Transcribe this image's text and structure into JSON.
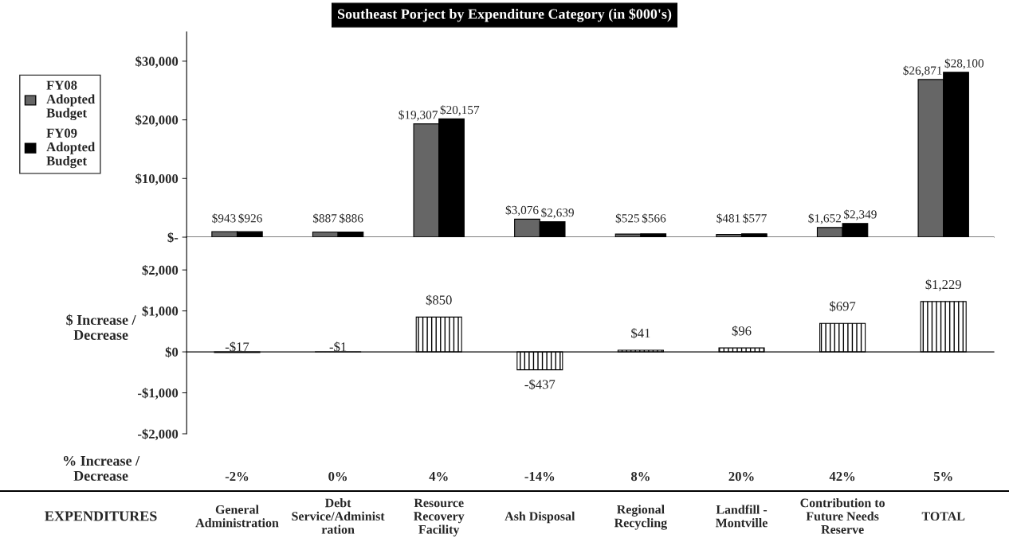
{
  "chart_data": [
    {
      "type": "bar",
      "title": "Southeast Porject by Expenditure Category (in $000's)",
      "categories": [
        null,
        null,
        null,
        null,
        null,
        null,
        null,
        null
      ],
      "series": [
        {
          "name": "FY08 Adopted Budget",
          "color": "#666666",
          "values": [
            943,
            887,
            19307,
            3076,
            525,
            481,
            1652,
            26871
          ],
          "value_labels": [
            "$943",
            "$887",
            "$19,307",
            "$3,076",
            "$525",
            "$481",
            "$1,652",
            "$26,871"
          ]
        },
        {
          "name": "FY09 Adopted Budget",
          "color": "#000000",
          "values": [
            926,
            886,
            20157,
            2639,
            566,
            577,
            2349,
            28100
          ],
          "value_labels": [
            "$926",
            "$886",
            "$20,157",
            "$2,639",
            "$566",
            "$577",
            "$2,349",
            "$28,100"
          ]
        }
      ],
      "ylim": [
        0,
        35000
      ],
      "yticks": [
        {
          "value": 0,
          "label": "$-"
        },
        {
          "value": 10000,
          "label": "$10,000"
        },
        {
          "value": 20000,
          "label": "$20,000"
        },
        {
          "value": 30000,
          "label": "$30,000"
        }
      ],
      "legend": "left",
      "tick_labels": "y"
    },
    {
      "type": "bar",
      "ylabel": "$ Increase / Decrease",
      "xlabel": "EXPENDITURES",
      "categories": [
        "General Administration",
        "Debt Service/Administ ration",
        "Resource Recovery Facility",
        "Ash Disposal",
        "Regional Recycling",
        "Landfill - Montville",
        "Contribution to Future Needs Reserve",
        "TOTAL"
      ],
      "values": [
        -17,
        -1,
        850,
        -437,
        41,
        96,
        697,
        1229
      ],
      "value_labels": [
        "-$17",
        "-$1",
        "$850",
        "-$437",
        "$41",
        "$96",
        "$697",
        "$1,229"
      ],
      "color": "#000000",
      "ylim": [
        -2000,
        2800
      ],
      "yticks": [
        {
          "value": -2000,
          "label": "-$2,000"
        },
        {
          "value": -1000,
          "label": "-$1,000"
        },
        {
          "value": 0,
          "label": "$0"
        },
        {
          "value": 1000,
          "label": "$1,000"
        },
        {
          "value": 2000,
          "label": "$2,000"
        }
      ],
      "annotations": [
        "% Increase / Decrease",
        "-2%",
        "0%",
        "4%",
        "-14%",
        "8%",
        "20%",
        "42%",
        "5%"
      ]
    }
  ]
}
